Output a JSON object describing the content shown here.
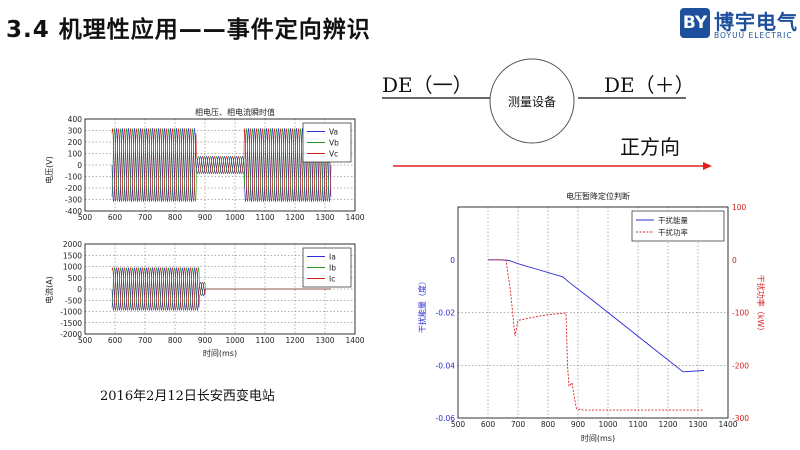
{
  "header": {
    "title": "3.4 机理性应用——事件定向辨识",
    "logo": {
      "mark": "BY",
      "name": "博宇电气",
      "subtitle": "BOYUU ELECTRIC"
    }
  },
  "diagram": {
    "left_label": "DE（一）",
    "right_label": "DE（＋）",
    "device_label": "测量设备",
    "direction_label": "正方向",
    "arrow_color": "#e02020"
  },
  "caption": "2016年2月12日长安西变电站",
  "chart_data": [
    {
      "type": "line",
      "title": "相电压、相电流瞬时值",
      "xlabel": "",
      "ylabel": "电压(V)",
      "xlim": [
        500,
        1400
      ],
      "ylim": [
        -400,
        400
      ],
      "xticks": [
        500,
        600,
        700,
        800,
        900,
        1000,
        1100,
        1200,
        1300,
        1400
      ],
      "yticks": [
        -400,
        -300,
        -200,
        -100,
        0,
        100,
        200,
        300,
        400
      ],
      "legend_position": "top-right",
      "series": [
        {
          "name": "Va",
          "color": "#2b2bd6",
          "phase": 0
        },
        {
          "name": "Vb",
          "color": "#1f9a1f",
          "phase": 2.094
        },
        {
          "name": "Vc",
          "color": "#d62020",
          "phase": 4.189
        }
      ],
      "segments": [
        {
          "x_start": 590,
          "x_end": 870,
          "amplitude": 320
        },
        {
          "x_start": 870,
          "x_end": 1030,
          "amplitude": 75
        },
        {
          "x_start": 1030,
          "x_end": 1320,
          "amplitude": 320
        }
      ],
      "grid": true
    },
    {
      "type": "line",
      "title": "",
      "xlabel": "时间(ms)",
      "ylabel": "电流(A)",
      "xlim": [
        500,
        1400
      ],
      "ylim": [
        -2000,
        2000
      ],
      "xticks": [
        500,
        600,
        700,
        800,
        900,
        1000,
        1100,
        1200,
        1300,
        1400
      ],
      "yticks": [
        -2000,
        -1500,
        -1000,
        -500,
        0,
        500,
        1000,
        1500,
        2000
      ],
      "legend_position": "top-right",
      "series": [
        {
          "name": "Ia",
          "color": "#2b2bd6",
          "phase": 0
        },
        {
          "name": "Ib",
          "color": "#1f9a1f",
          "phase": 2.094
        },
        {
          "name": "Ic",
          "color": "#d62020",
          "phase": 4.189
        }
      ],
      "segments": [
        {
          "x_start": 590,
          "x_end": 880,
          "amplitude": 950
        },
        {
          "x_start": 880,
          "x_end": 900,
          "amplitude": 300
        },
        {
          "x_start": 900,
          "x_end": 1320,
          "amplitude": 0
        }
      ],
      "grid": true
    },
    {
      "type": "line",
      "title": "电压暂降定位判断",
      "xlabel": "时间(ms)",
      "ylabel": "干扰能量（度）",
      "ylabel_right": "干扰功率（kW）",
      "xlim": [
        500,
        1400
      ],
      "ylim": [
        -0.06,
        0.02
      ],
      "ylim_right": [
        -300,
        100
      ],
      "xticks": [
        500,
        600,
        700,
        800,
        900,
        1000,
        1100,
        1200,
        1300,
        1400
      ],
      "yticks": [
        -0.06,
        -0.04,
        -0.02,
        0
      ],
      "yticks_right": [
        -300,
        -200,
        -100,
        0,
        100
      ],
      "legend_position": "top-right",
      "series": [
        {
          "name": "干扰能量",
          "color": "#2b2bd6",
          "axis": "left",
          "x": [
            600,
            640,
            670,
            700,
            760,
            850,
            870,
            950,
            1050,
            1150,
            1250,
            1320
          ],
          "y": [
            0,
            0,
            -0.0003,
            -0.0015,
            -0.0035,
            -0.0065,
            -0.0085,
            -0.0155,
            -0.0245,
            -0.0335,
            -0.0425,
            -0.042
          ]
        },
        {
          "name": "干扰功率",
          "color": "#d62020",
          "dashed": true,
          "axis": "right",
          "x": [
            600,
            660,
            665,
            675,
            690,
            700,
            760,
            800,
            860,
            865,
            870,
            880,
            890,
            895,
            920,
            1000,
            1100,
            1200,
            1320
          ],
          "y": [
            0,
            0,
            -20,
            -60,
            -145,
            -115,
            -108,
            -104,
            -101,
            -200,
            -240,
            -233,
            -268,
            -283,
            -285,
            -285,
            -285,
            -285,
            -285
          ]
        }
      ],
      "grid": true
    }
  ]
}
